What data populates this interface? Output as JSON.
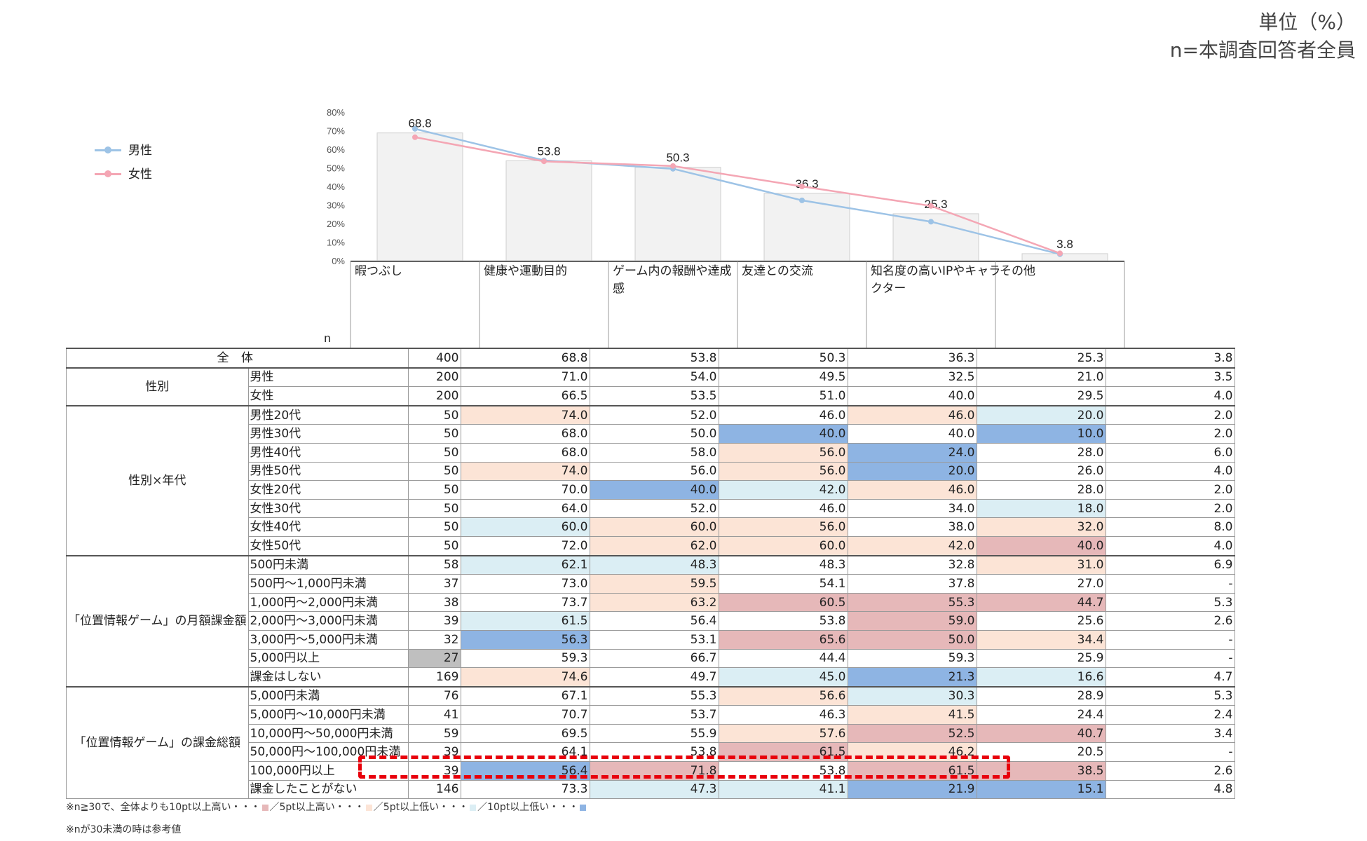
{
  "unit_note": [
    "単位（%）",
    "n=本調査回答者全員"
  ],
  "chart_data": {
    "type": "bar",
    "categories": [
      "暇つぶし",
      "健康や運動目的",
      "ゲーム内の報酬や達成感",
      "友達との交流",
      "知名度の高いIPやキャラクター",
      "その他"
    ],
    "categories_display": [
      [
        "暇つぶし"
      ],
      [
        "健康や運動目的"
      ],
      [
        "ゲーム内の報酬や達成",
        "感"
      ],
      [
        "友達との交流"
      ],
      [
        "知名度の高いIPやキャラ",
        "クター"
      ],
      [
        "その他"
      ]
    ],
    "values": [
      68.8,
      53.8,
      50.3,
      36.3,
      25.3,
      3.8
    ],
    "series": [
      {
        "name": "男性",
        "type": "line",
        "color": "#9dc3e6",
        "values": [
          71.0,
          54.0,
          49.5,
          32.5,
          21.0,
          3.5
        ]
      },
      {
        "name": "女性",
        "type": "line",
        "color": "#f4a6b4",
        "values": [
          66.5,
          53.5,
          51.0,
          40.0,
          29.5,
          4.0
        ]
      }
    ],
    "ylim": [
      0,
      80
    ],
    "yticks": [
      "0%",
      "10%",
      "20%",
      "30%",
      "40%",
      "50%",
      "60%",
      "70%",
      "80%"
    ],
    "legend": "left",
    "bar_color": "#f2f2f2"
  },
  "table": {
    "n_header": "n",
    "rows": [
      {
        "group": "全 体",
        "label": "",
        "n": "400",
        "values": [
          "68.8",
          "53.8",
          "50.3",
          "36.3",
          "25.3",
          "3.8"
        ],
        "marks": [
          "",
          "",
          "",
          "",
          "",
          ""
        ]
      },
      {
        "group": "性別",
        "label": "男性",
        "n": "200",
        "values": [
          "71.0",
          "54.0",
          "49.5",
          "32.5",
          "21.0",
          "3.5"
        ],
        "marks": [
          "",
          "",
          "",
          "",
          "",
          ""
        ]
      },
      {
        "group": "",
        "label": "女性",
        "n": "200",
        "values": [
          "66.5",
          "53.5",
          "51.0",
          "40.0",
          "29.5",
          "4.0"
        ],
        "marks": [
          "",
          "",
          "",
          "",
          "",
          ""
        ]
      },
      {
        "group": "性別×年代",
        "label": "男性20代",
        "n": "50",
        "values": [
          "74.0",
          "52.0",
          "46.0",
          "46.0",
          "20.0",
          "2.0"
        ],
        "marks": [
          "high5",
          "",
          "",
          "high5",
          "low5",
          ""
        ]
      },
      {
        "group": "",
        "label": "男性30代",
        "n": "50",
        "values": [
          "68.0",
          "50.0",
          "40.0",
          "40.0",
          "10.0",
          "2.0"
        ],
        "marks": [
          "",
          "",
          "low10",
          "",
          "low10",
          ""
        ]
      },
      {
        "group": "",
        "label": "男性40代",
        "n": "50",
        "values": [
          "68.0",
          "58.0",
          "56.0",
          "24.0",
          "28.0",
          "6.0"
        ],
        "marks": [
          "",
          "",
          "high5",
          "low10",
          "",
          ""
        ]
      },
      {
        "group": "",
        "label": "男性50代",
        "n": "50",
        "values": [
          "74.0",
          "56.0",
          "56.0",
          "20.0",
          "26.0",
          "4.0"
        ],
        "marks": [
          "high5",
          "",
          "high5",
          "low10",
          "",
          ""
        ]
      },
      {
        "group": "",
        "label": "女性20代",
        "n": "50",
        "values": [
          "70.0",
          "40.0",
          "42.0",
          "46.0",
          "28.0",
          "2.0"
        ],
        "marks": [
          "",
          "low10",
          "low5",
          "high5",
          "",
          ""
        ]
      },
      {
        "group": "",
        "label": "女性30代",
        "n": "50",
        "values": [
          "64.0",
          "52.0",
          "46.0",
          "34.0",
          "18.0",
          "2.0"
        ],
        "marks": [
          "",
          "",
          "",
          "",
          "low5",
          ""
        ]
      },
      {
        "group": "",
        "label": "女性40代",
        "n": "50",
        "values": [
          "60.0",
          "60.0",
          "56.0",
          "38.0",
          "32.0",
          "8.0"
        ],
        "marks": [
          "low5",
          "high5",
          "high5",
          "",
          "high5",
          ""
        ]
      },
      {
        "group": "",
        "label": "女性50代",
        "n": "50",
        "values": [
          "72.0",
          "62.0",
          "60.0",
          "42.0",
          "40.0",
          "4.0"
        ],
        "marks": [
          "",
          "high5",
          "high5",
          "high5",
          "high10",
          ""
        ]
      },
      {
        "group": "「位置情報ゲーム」の月額課金額",
        "label": "500円未満",
        "n": "58",
        "values": [
          "62.1",
          "48.3",
          "48.3",
          "32.8",
          "31.0",
          "6.9"
        ],
        "marks": [
          "low5",
          "low5",
          "",
          "",
          "high5",
          ""
        ]
      },
      {
        "group": "",
        "label": "500円～1,000円未満",
        "n": "37",
        "values": [
          "73.0",
          "59.5",
          "54.1",
          "37.8",
          "27.0",
          "-"
        ],
        "marks": [
          "",
          "high5",
          "",
          "",
          "",
          ""
        ]
      },
      {
        "group": "",
        "label": "1,000円～2,000円未満",
        "n": "38",
        "values": [
          "73.7",
          "63.2",
          "60.5",
          "55.3",
          "44.7",
          "5.3"
        ],
        "marks": [
          "",
          "high5",
          "high10",
          "high10",
          "high10",
          ""
        ]
      },
      {
        "group": "",
        "label": "2,000円～3,000円未満",
        "n": "39",
        "values": [
          "61.5",
          "56.4",
          "53.8",
          "59.0",
          "25.6",
          "2.6"
        ],
        "marks": [
          "low5",
          "",
          "",
          "high10",
          "",
          ""
        ]
      },
      {
        "group": "",
        "label": "3,000円～5,000円未満",
        "n": "32",
        "values": [
          "56.3",
          "53.1",
          "65.6",
          "50.0",
          "34.4",
          "-"
        ],
        "marks": [
          "low10",
          "",
          "high10",
          "high10",
          "high5",
          ""
        ]
      },
      {
        "group": "",
        "label": "5,000円以上",
        "n": "27",
        "values": [
          "59.3",
          "66.7",
          "44.4",
          "59.3",
          "25.9",
          "-"
        ],
        "marks": [
          "",
          "",
          "",
          "",
          "",
          ""
        ],
        "n_ref": true
      },
      {
        "group": "",
        "label": "課金はしない",
        "n": "169",
        "values": [
          "74.6",
          "49.7",
          "45.0",
          "21.3",
          "16.6",
          "4.7"
        ],
        "marks": [
          "high5",
          "",
          "low5",
          "low10",
          "low5",
          ""
        ]
      },
      {
        "group": "「位置情報ゲーム」の課金総額",
        "label": "5,000円未満",
        "n": "76",
        "values": [
          "67.1",
          "55.3",
          "56.6",
          "30.3",
          "28.9",
          "5.3"
        ],
        "marks": [
          "",
          "",
          "high5",
          "low5",
          "",
          ""
        ]
      },
      {
        "group": "",
        "label": "5,000円～10,000円未満",
        "n": "41",
        "values": [
          "70.7",
          "53.7",
          "46.3",
          "41.5",
          "24.4",
          "2.4"
        ],
        "marks": [
          "",
          "",
          "",
          "high5",
          "",
          ""
        ]
      },
      {
        "group": "",
        "label": "10,000円～50,000円未満",
        "n": "59",
        "values": [
          "69.5",
          "55.9",
          "57.6",
          "52.5",
          "40.7",
          "3.4"
        ],
        "marks": [
          "",
          "",
          "high5",
          "high10",
          "high10",
          ""
        ]
      },
      {
        "group": "",
        "label": "50,000円～100,000円未満",
        "n": "39",
        "values": [
          "64.1",
          "53.8",
          "61.5",
          "46.2",
          "20.5",
          "-"
        ],
        "marks": [
          "",
          "",
          "high10",
          "high5",
          "",
          ""
        ]
      },
      {
        "group": "",
        "label": "100,000円以上",
        "n": "39",
        "values": [
          "56.4",
          "71.8",
          "53.8",
          "61.5",
          "38.5",
          "2.6"
        ],
        "marks": [
          "low10",
          "high10",
          "",
          "high10",
          "high10",
          ""
        ]
      },
      {
        "group": "",
        "label": "課金したことがない",
        "n": "146",
        "values": [
          "73.3",
          "47.3",
          "41.1",
          "21.9",
          "15.1",
          "4.8"
        ],
        "marks": [
          "",
          "low5",
          "low5",
          "low10",
          "low10",
          ""
        ]
      }
    ]
  },
  "notes": {
    "line1_parts": [
      "※n≧30で、全体よりも10pt以上高い・・・",
      "／5pt以上高い・・・",
      "／5pt以上低い・・・",
      "／10pt以上低い・・・"
    ],
    "line2": "※nが30未満の時は参考値"
  },
  "colors": {
    "high10": "#e6b8b9",
    "high5": "#fce4d6",
    "low5": "#dbeef4",
    "low10": "#8eb4e3",
    "ref": "#bfbfbf",
    "highlight": "#e8000b"
  }
}
